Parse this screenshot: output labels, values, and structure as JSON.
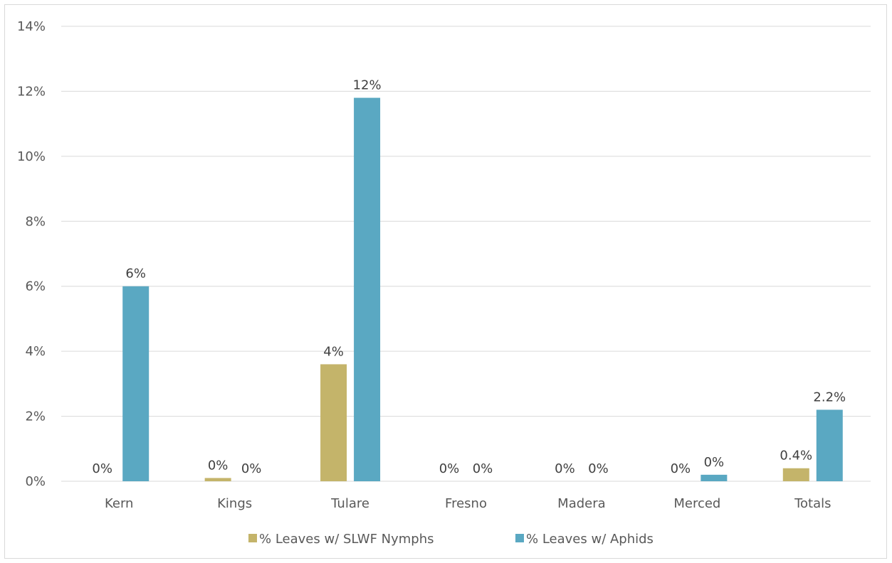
{
  "chart_data": {
    "type": "bar",
    "categories": [
      "Kern",
      "Kings",
      "Tulare",
      "Fresno",
      "Madera",
      "Merced",
      "Totals"
    ],
    "series": [
      {
        "name": "% Leaves w/ SLWF Nymphs",
        "color": "#c4b46a",
        "values": [
          0,
          0.1,
          3.6,
          0,
          0,
          0,
          0.4
        ],
        "labels": [
          "0%",
          "0%",
          "4%",
          "0%",
          "0%",
          "0%",
          "0.4%"
        ]
      },
      {
        "name": "% Leaves w/ Aphids",
        "color": "#5aa8c2",
        "values": [
          6.0,
          0,
          11.8,
          0,
          0,
          0.2,
          2.2
        ],
        "labels": [
          "6%",
          "0%",
          "12%",
          "0%",
          "0%",
          "0%",
          "2.2%"
        ]
      }
    ],
    "yticks": [
      "0%",
      "2%",
      "4%",
      "6%",
      "8%",
      "10%",
      "12%",
      "14%"
    ],
    "ylim": [
      0,
      14
    ],
    "grid": true,
    "legend_position": "bottom",
    "title": "",
    "xlabel": "",
    "ylabel": ""
  }
}
